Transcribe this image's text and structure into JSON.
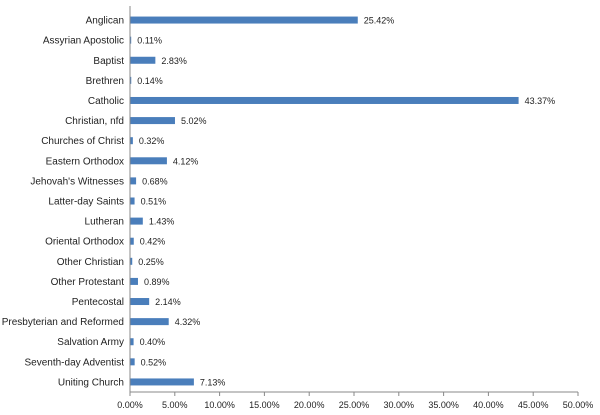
{
  "chart_data": {
    "type": "bar",
    "orientation": "horizontal",
    "categories": [
      "Anglican",
      "Assyrian Apostolic",
      "Baptist",
      "Brethren",
      "Catholic",
      "Christian, nfd",
      "Churches of Christ",
      "Eastern Orthodox",
      "Jehovah's Witnesses",
      "Latter-day Saints",
      "Lutheran",
      "Oriental Orthodox",
      "Other Christian",
      "Other Protestant",
      "Pentecostal",
      "Presbyterian and Reformed",
      "Salvation Army",
      "Seventh-day Adventist",
      "Uniting Church"
    ],
    "values": [
      25.42,
      0.11,
      2.83,
      0.14,
      43.37,
      5.02,
      0.32,
      4.12,
      0.68,
      0.51,
      1.43,
      0.42,
      0.25,
      0.89,
      2.14,
      4.32,
      0.4,
      0.52,
      7.13
    ],
    "data_labels": [
      "25.42%",
      "0.11%",
      "2.83%",
      "0.14%",
      "43.37%",
      "5.02%",
      "0.32%",
      "4.12%",
      "0.68%",
      "0.51%",
      "1.43%",
      "0.42%",
      "0.25%",
      "0.89%",
      "2.14%",
      "4.32%",
      "0.40%",
      "0.52%",
      "7.13%"
    ],
    "xlim": [
      0,
      50
    ],
    "x_ticks": [
      0,
      5,
      10,
      15,
      20,
      25,
      30,
      35,
      40,
      45,
      50
    ],
    "x_tick_labels": [
      "0.00%",
      "5.00%",
      "10.00%",
      "15.00%",
      "20.00%",
      "25.00%",
      "30.00%",
      "35.00%",
      "40.00%",
      "45.00%",
      "50.00%"
    ],
    "bar_color": "#4a7ebb",
    "grid": false,
    "legend": "none"
  }
}
